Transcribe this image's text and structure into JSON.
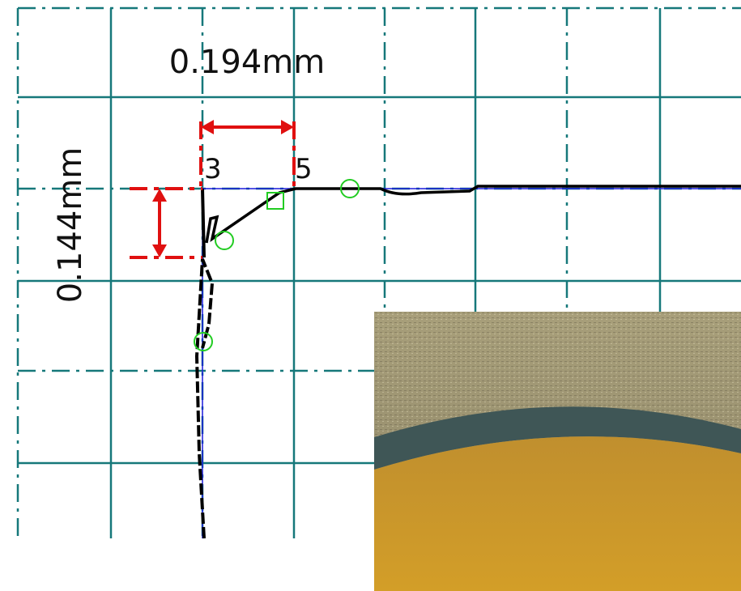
{
  "dimensions": {
    "horizontal": "0.194mm",
    "vertical": "0.144mm"
  },
  "points": [
    "3",
    "5"
  ]
}
